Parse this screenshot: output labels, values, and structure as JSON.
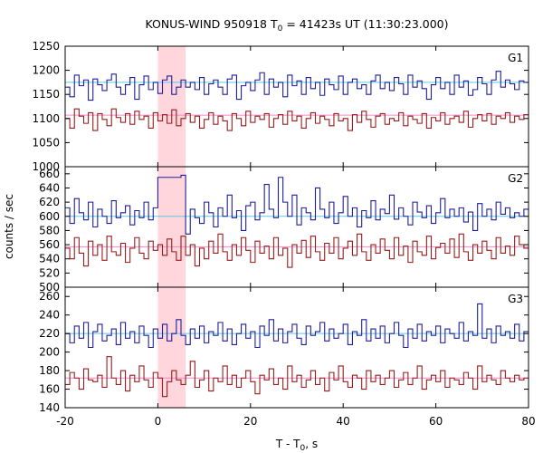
{
  "chart_data": {
    "type": "line",
    "title": "KONUS-WIND 950918 T",
    "title_sub": "0",
    "title_rest": " = 41423s UT (11:30:23.000)",
    "xlabel": "T - T",
    "xlabel_sub": "0",
    "xlabel_rest": ", s",
    "ylabel": "counts / sec",
    "xlim": [
      -20,
      80
    ],
    "xticks": [
      "-20",
      "0",
      "20",
      "40",
      "60",
      "80"
    ],
    "xtick_values": [
      -20,
      0,
      20,
      40,
      60,
      80
    ],
    "highlight_region": [
      0,
      6
    ],
    "colors": {
      "high_series": "#1f1f9a",
      "low_series": "#9a1c1c",
      "high_background": "#5ec8e8",
      "low_background": "#f08aca",
      "region": "#ffd6dc"
    },
    "panels": [
      {
        "name": "G1",
        "ylim": [
          1000,
          1250
        ],
        "yticks": [
          "1250",
          "1200",
          "1150",
          "1100",
          "1050",
          "1000"
        ],
        "ytick_values": [
          1250,
          1200,
          1150,
          1100,
          1050,
          1000
        ],
        "background_levels": [
          1175,
          1107
        ],
        "series": [
          {
            "role": "high",
            "x0": -20,
            "dx": 1,
            "values": [
              1165,
              1145,
              1190,
              1168,
              1180,
              1138,
              1182,
              1170,
              1158,
              1180,
              1192,
              1165,
              1150,
              1170,
              1185,
              1140,
              1170,
              1188,
              1160,
              1175,
              1152,
              1180,
              1188,
              1150,
              1165,
              1180,
              1165,
              1175,
              1160,
              1185,
              1150,
              1172,
              1180,
              1165,
              1150,
              1182,
              1190,
              1140,
              1168,
              1175,
              1158,
              1180,
              1195,
              1150,
              1182,
              1165,
              1175,
              1145,
              1190,
              1168,
              1178,
              1150,
              1185,
              1162,
              1175,
              1148,
              1182,
              1170,
              1160,
              1188,
              1150,
              1175,
              1182,
              1162,
              1170,
              1150,
              1178,
              1190,
              1162,
              1175,
              1158,
              1185,
              1172,
              1150,
              1190,
              1165,
              1178,
              1162,
              1140,
              1170,
              1185,
              1162,
              1175,
              1150,
              1190,
              1165,
              1178,
              1148,
              1160,
              1185,
              1172,
              1150,
              1180,
              1198,
              1165,
              1180,
              1172,
              1160,
              1178,
              1175
            ]
          },
          {
            "role": "low",
            "x0": -20,
            "dx": 1,
            "values": [
              1100,
              1080,
              1120,
              1105,
              1090,
              1112,
              1075,
              1110,
              1098,
              1085,
              1120,
              1102,
              1092,
              1110,
              1088,
              1115,
              1098,
              1105,
              1080,
              1112,
              1095,
              1108,
              1090,
              1118,
              1085,
              1100,
              1110,
              1092,
              1105,
              1080,
              1098,
              1112,
              1088,
              1105,
              1095,
              1075,
              1110,
              1100,
              1085,
              1115,
              1092,
              1105,
              1098,
              1110,
              1082,
              1100,
              1108,
              1088,
              1115,
              1095,
              1105,
              1080,
              1100,
              1112,
              1090,
              1105,
              1098,
              1085,
              1110,
              1095,
              1100,
              1075,
              1108,
              1092,
              1115,
              1098,
              1082,
              1105,
              1110,
              1088,
              1100,
              1095,
              1112,
              1085,
              1105,
              1098,
              1090,
              1110,
              1080,
              1102,
              1095,
              1112,
              1088,
              1100,
              1105,
              1092,
              1115,
              1082,
              1100,
              1108,
              1095,
              1110,
              1088,
              1105,
              1100,
              1112,
              1092,
              1105,
              1098,
              1108
            ]
          }
        ]
      },
      {
        "name": "G2",
        "ylim": [
          500,
          670
        ],
        "yticks": [
          "660",
          "640",
          "620",
          "600",
          "580",
          "560",
          "540",
          "520",
          "500"
        ],
        "ytick_values": [
          660,
          640,
          620,
          600,
          580,
          560,
          540,
          520,
          500
        ],
        "background_levels": [
          600,
          557
        ],
        "series": [
          {
            "role": "high",
            "x0": -20,
            "dx": 1,
            "values": [
              612,
              590,
              625,
              605,
              595,
              620,
              585,
              610,
              600,
              590,
              622,
              598,
              605,
              615,
              588,
              608,
              598,
              620,
              595,
              612,
              655,
              655,
              655,
              655,
              655,
              658,
              575,
              610,
              598,
              590,
              620,
              605,
              585,
              612,
              600,
              630,
              598,
              608,
              580,
              615,
              620,
              595,
              605,
              645,
              610,
              598,
              655,
              620,
              600,
              630,
              588,
              612,
              605,
              595,
              640,
              610,
              598,
              620,
              590,
              605,
              628,
              600,
              612,
              585,
              608,
              598,
              622,
              595,
              610,
              604,
              630,
              596,
              612,
              600,
              588,
              620,
              606,
              598,
              615,
              590,
              605,
              625,
              598,
              610,
              600,
              612,
              592,
              606,
              580,
              618,
              600,
              610,
              595,
              620,
              603,
              612,
              598,
              605,
              600,
              610
            ]
          },
          {
            "role": "low",
            "x0": -20,
            "dx": 1,
            "values": [
              555,
              540,
              570,
              548,
              530,
              565,
              545,
              560,
              538,
              572,
              550,
              545,
              562,
              535,
              555,
              570,
              548,
              540,
              565,
              552,
              560,
              545,
              568,
              550,
              538,
              572,
              545,
              560,
              530,
              555,
              540,
              565,
              548,
              575,
              550,
              538,
              560,
              545,
              570,
              552,
              535,
              565,
              548,
              558,
              540,
              570,
              545,
              555,
              528,
              560,
              548,
              566,
              542,
              572,
              550,
              538,
              562,
              548,
              570,
              540,
              555,
              565,
              545,
              575,
              550,
              538,
              560,
              548,
              568,
              552,
              540,
              570,
              545,
              558,
              535,
              565,
              550,
              545,
              572,
              540,
              556,
              562,
              548,
              568,
              542,
              575,
              550,
              538,
              560,
              548,
              565,
              552,
              540,
              570,
              548,
              558,
              545,
              572,
              560,
              555
            ]
          }
        ]
      },
      {
        "name": "G3",
        "ylim": [
          140,
          270
        ],
        "yticks": [
          "260",
          "240",
          "220",
          "200",
          "180",
          "160",
          "140"
        ],
        "ytick_values": [
          260,
          240,
          220,
          200,
          180,
          160,
          140
        ],
        "background_levels": [
          220,
          172
        ],
        "series": [
          {
            "role": "high",
            "x0": -20,
            "dx": 1,
            "values": [
              220,
              210,
              228,
              215,
              232,
              205,
              222,
              230,
              212,
              218,
              225,
              208,
              232,
              215,
              222,
              210,
              228,
              218,
              205,
              225,
              215,
              230,
              212,
              220,
              235,
              218,
              208,
              225,
              215,
              228,
              210,
              222,
              218,
              232,
              212,
              225,
              208,
              220,
              230,
              215,
              222,
              205,
              228,
              218,
              235,
              212,
              225,
              210,
              222,
              230,
              215,
              208,
              228,
              218,
              222,
              232,
              212,
              225,
              215,
              220,
              230,
              208,
              222,
              218,
              235,
              212,
              225,
              215,
              228,
              210,
              220,
              232,
              218,
              205,
              225,
              215,
              230,
              212,
              222,
              218,
              228,
              210,
              225,
              220,
              215,
              232,
              212,
              222,
              218,
              252,
              215,
              225,
              210,
              228,
              218,
              222,
              215,
              230,
              212,
              222
            ]
          },
          {
            "role": "low",
            "x0": -20,
            "dx": 1,
            "values": [
              165,
              178,
              172,
              160,
              182,
              170,
              168,
              175,
              162,
              195,
              172,
              165,
              180,
              158,
              175,
              168,
              185,
              170,
              162,
              178,
              172,
              152,
              168,
              180,
              170,
              165,
              175,
              190,
              162,
              170,
              180,
              158,
              172,
              168,
              185,
              165,
              175,
              162,
              172,
              180,
              168,
              155,
              175,
              170,
              182,
              165,
              172,
              160,
              185,
              168,
              175,
              162,
              170,
              180,
              165,
              172,
              158,
              178,
              170,
              185,
              168,
              162,
              175,
              172,
              160,
              180,
              168,
              175,
              165,
              172,
              180,
              162,
              170,
              178,
              165,
              172,
              185,
              160,
              170,
              175,
              168,
              180,
              162,
              172,
              170,
              165,
              178,
              172,
              160,
              185,
              168,
              175,
              170,
              165,
              180,
              172,
              168,
              175,
              170,
              172
            ]
          }
        ]
      }
    ]
  }
}
